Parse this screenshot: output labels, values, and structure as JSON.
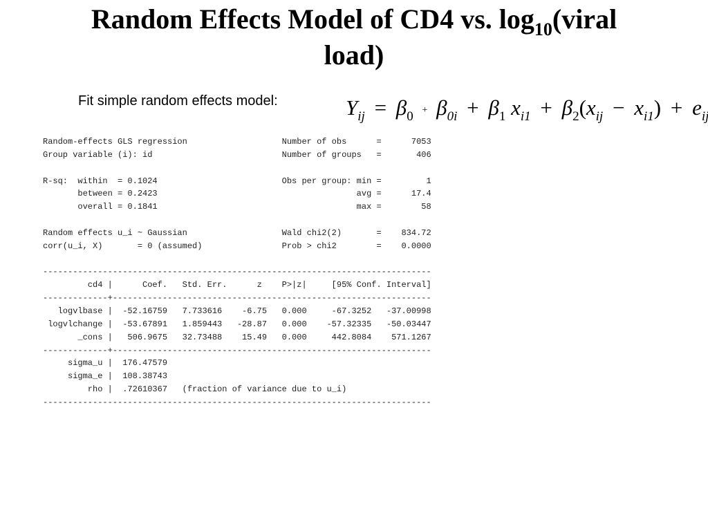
{
  "slide": {
    "title_line1_prefix": "Random Effects Model of CD4 vs. log",
    "title_sub": "10",
    "title_line1_suffix": "(viral",
    "title_line2": "load)",
    "subtitle": "Fit simple random effects model:",
    "formula": {
      "Y": "Y",
      "Y_sub": "ij",
      "eq": "=",
      "b0": "β",
      "b0_sub": "0",
      "plus_small": "+",
      "b0i": "β",
      "b0i_sub": "0i",
      "plus1": "+",
      "b1": "β",
      "b1_sub": "1",
      "x1": "x",
      "x1_sub": "i1",
      "plus2": "+",
      "b2": "β",
      "b2_sub": "2",
      "lparen": "(",
      "xij": "x",
      "xij_sub": "ij",
      "minus": "−",
      "xi1": "x",
      "xi1_sub": "i1",
      "rparen": ")",
      "plus3": "+",
      "e": "e",
      "e_sub": "ij"
    }
  },
  "stata_output": [
    "Random-effects GLS regression                   Number of obs      =      7053",
    "Group variable (i): id                          Number of groups   =       406",
    "",
    "R-sq:  within  = 0.1024                         Obs per group: min =         1",
    "       between = 0.2423                                        avg =      17.4",
    "       overall = 0.1841                                        max =        58",
    "",
    "Random effects u_i ~ Gaussian                   Wald chi2(2)       =    834.72",
    "corr(u_i, X)       = 0 (assumed)                Prob > chi2        =    0.0000",
    "",
    "------------------------------------------------------------------------------",
    "         cd4 |      Coef.   Std. Err.      z    P>|z|     [95% Conf. Interval]",
    "-------------+----------------------------------------------------------------",
    "   logvlbase |  -52.16759   7.733616    -6.75   0.000     -67.3252   -37.00998",
    " logvlchange |  -53.67891   1.859443   -28.87   0.000    -57.32335   -50.03447",
    "       _cons |   506.9675   32.73488    15.49   0.000     442.8084    571.1267",
    "-------------+----------------------------------------------------------------",
    "     sigma_u |  176.47579",
    "     sigma_e |  108.38743",
    "         rho |  .72610367   (fraction of variance due to u_i)",
    "------------------------------------------------------------------------------"
  ]
}
